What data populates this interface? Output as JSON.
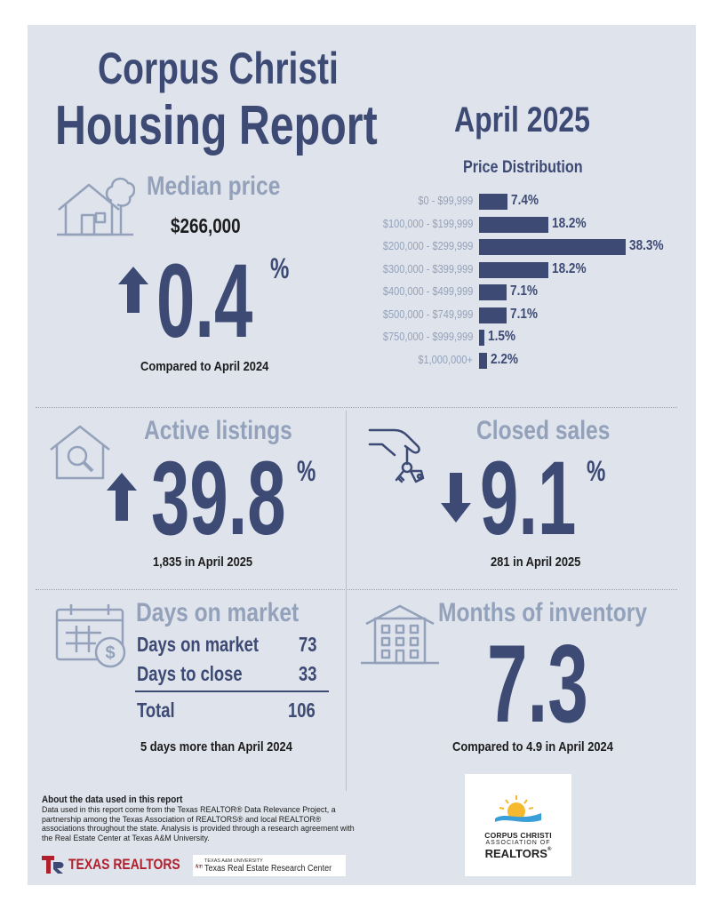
{
  "header": {
    "title_line1": "Corpus Christi",
    "title_line2": "Housing Report",
    "month": "April 2025"
  },
  "median_price": {
    "label": "Median price",
    "value": "$266,000",
    "change": "0.4",
    "unit": "%",
    "direction": "up",
    "note": "Compared to April 2024"
  },
  "price_distribution": {
    "title": "Price Distribution",
    "rows": [
      {
        "range": "$0 - $99,999",
        "value_label": "7.4%"
      },
      {
        "range": "$100,000 - $199,999",
        "value_label": "18.2%"
      },
      {
        "range": "$200,000 - $299,999",
        "value_label": "38.3%"
      },
      {
        "range": "$300,000 - $399,999",
        "value_label": "18.2%"
      },
      {
        "range": "$400,000 - $499,999",
        "value_label": "7.1%"
      },
      {
        "range": "$500,000 - $749,999",
        "value_label": "7.1%"
      },
      {
        "range": "$750,000 - $999,999",
        "value_label": "1.5%"
      },
      {
        "range": "$1,000,000+",
        "value_label": "2.2%"
      }
    ]
  },
  "chart_data": {
    "type": "bar",
    "title": "Price Distribution",
    "categories": [
      "$0 - $99,999",
      "$100,000 - $199,999",
      "$200,000 - $299,999",
      "$300,000 - $399,999",
      "$400,000 - $499,999",
      "$500,000 - $749,999",
      "$750,000 - $999,999",
      "$1,000,000+"
    ],
    "values": [
      7.4,
      18.2,
      38.3,
      18.2,
      7.1,
      7.1,
      1.5,
      2.2
    ],
    "orientation": "horizontal",
    "color": "#3c4a74"
  },
  "active_listings": {
    "label": "Active listings",
    "change": "39.8",
    "unit": "%",
    "direction": "up",
    "note": "1,835 in April 2025"
  },
  "closed_sales": {
    "label": "Closed sales",
    "change": "9.1",
    "unit": "%",
    "direction": "down",
    "note": "281 in April 2025"
  },
  "days_on_market": {
    "label": "Days on market",
    "rows": [
      {
        "name": "Days on market",
        "value": "73"
      },
      {
        "name": "Days to close",
        "value": "33"
      }
    ],
    "total_label": "Total",
    "total_value": "106",
    "note": "5 days more than April 2024"
  },
  "months_inventory": {
    "label": "Months of inventory",
    "value": "7.3",
    "note": "Compared to 4.9 in April 2024"
  },
  "about": {
    "heading": "About the data used in this report",
    "text": "Data used in this report come from the Texas REALTOR® Data Relevance Project, a partnership among the Texas Association of REALTORS® and local REALTOR® associations throughout the state. Analysis is provided through a research agreement with the Real Estate Center at Texas A&M University."
  },
  "footer": {
    "texas_realtors": "TEXAS REALTORS",
    "tamu_small": "TEXAS A&M UNIVERSITY",
    "tamu_center": "Texas Real Estate Research Center",
    "ccar_line1": "CORPUS CHRISTI",
    "ccar_line2": "ASSOCIATION OF",
    "ccar_line3": "REALTORS"
  },
  "colors": {
    "navy": "#3c4a74",
    "light": "#93a2ba",
    "panel": "#dfe3ec"
  }
}
